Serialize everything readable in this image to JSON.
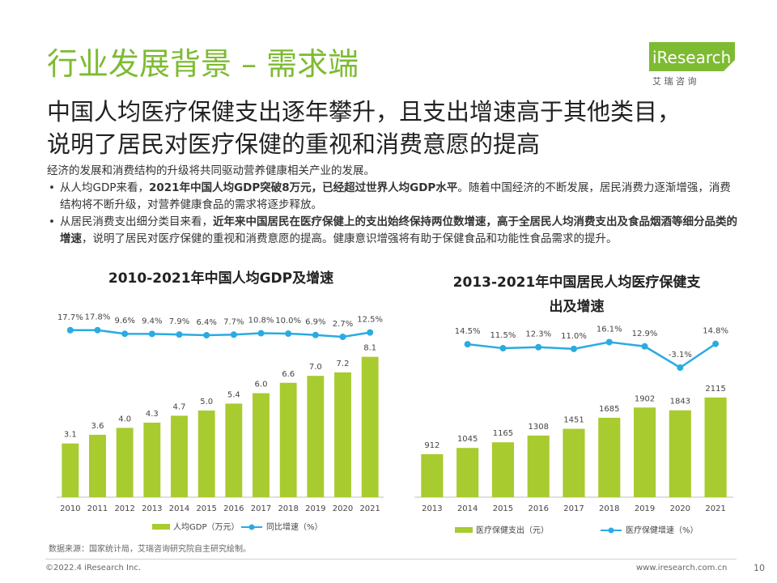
{
  "title": "行业发展背景 – 需求端",
  "logo": {
    "brand": "iResearch",
    "sub": "艾 瑞 咨 询",
    "color": "#7dbb32"
  },
  "headline": {
    "line1": "中国人均医疗保健支出逐年攀升，且支出增速高于其他类目，",
    "line2": "说明了居民对医疗保健的重视和消费意愿的提高"
  },
  "body": {
    "intro": "经济的发展和消费结构的升级将共同驱动营养健康相关产业的发展。",
    "bullet1": {
      "pre": "从人均GDP来看，",
      "bold": "2021年中国人均GDP突破8万元，已经超过世界人均GDP水平",
      "post": "。随着中国经济的不断发展，居民消费力逐渐增强，消费结构将不断升级，对营养健康食品的需求将逐步释放。"
    },
    "bullet2": {
      "pre": "从居民消费支出细分类目来看，",
      "bold": "近年来中国居民在医疗保健上的支出始终保持两位数增速，高于全居民人均消费支出及食品烟酒等细分品类的增速",
      "post": "，说明了居民对医疗保健的重视和消费意愿的提高。健康意识增强将有助于保健食品和功能性食品需求的提升。"
    }
  },
  "colors": {
    "bar": "#a8cb2f",
    "line": "#2aabe2",
    "accent": "#7dbb32"
  },
  "chart_data": [
    {
      "type": "bar",
      "title": "2010-2021年中国人均GDP及增速",
      "categories": [
        "2010",
        "2011",
        "2012",
        "2013",
        "2014",
        "2015",
        "2016",
        "2017",
        "2018",
        "2019",
        "2020",
        "2021"
      ],
      "series": [
        {
          "name": "人均GDP（万元）",
          "type": "bar",
          "values": [
            3.1,
            3.6,
            4.0,
            4.3,
            4.7,
            5.0,
            5.4,
            6.0,
            6.6,
            7.0,
            7.2,
            8.1
          ],
          "labels": [
            "3.1",
            "3.6",
            "4.0",
            "4.3",
            "4.7",
            "5.0",
            "5.4",
            "6.0",
            "6.6",
            "7.0",
            "7.2",
            "8.1"
          ]
        },
        {
          "name": "同比增速（%）",
          "type": "line",
          "values": [
            17.7,
            17.8,
            9.6,
            9.4,
            7.9,
            6.4,
            7.7,
            10.8,
            10.0,
            6.9,
            2.7,
            12.5
          ],
          "labels": [
            "17.7%",
            "17.8%",
            "9.6%",
            "9.4%",
            "7.9%",
            "6.4%",
            "7.7%",
            "10.8%",
            "10.0%",
            "6.9%",
            "2.7%",
            "12.5%"
          ]
        }
      ],
      "legend_position": "bottom",
      "grid": false
    },
    {
      "type": "bar",
      "title_line1": "2013-2021年中国居民人均医疗保健支",
      "title_line2": "出及增速",
      "categories": [
        "2013",
        "2014",
        "2015",
        "2016",
        "2017",
        "2018",
        "2019",
        "2020",
        "2021"
      ],
      "series": [
        {
          "name": "医疗保健支出（元）",
          "type": "bar",
          "values": [
            912,
            1045,
            1165,
            1308,
            1451,
            1685,
            1902,
            1843,
            2115
          ],
          "labels": [
            "912",
            "1045",
            "1165",
            "1308",
            "1451",
            "1685",
            "1902",
            "1843",
            "2115"
          ]
        },
        {
          "name": "医疗保健增速（%）",
          "type": "line",
          "values": [
            14.5,
            11.5,
            12.3,
            11.0,
            16.1,
            12.9,
            -3.1,
            14.8
          ],
          "x": [
            "2014",
            "2015",
            "2016",
            "2017",
            "2018",
            "2019",
            "2020",
            "2021"
          ],
          "labels": [
            "14.5%",
            "11.5%",
            "12.3%",
            "11.0%",
            "16.1%",
            "12.9%",
            "-3.1%",
            "14.8%"
          ]
        }
      ],
      "legend_position": "bottom",
      "grid": false
    }
  ],
  "footer": {
    "source": "数据来源：国家统计局，艾瑞咨询研究院自主研究绘制。",
    "copyright": "©2022.4 iResearch Inc.",
    "url": "www.iresearch.com.cn",
    "page": "10"
  }
}
